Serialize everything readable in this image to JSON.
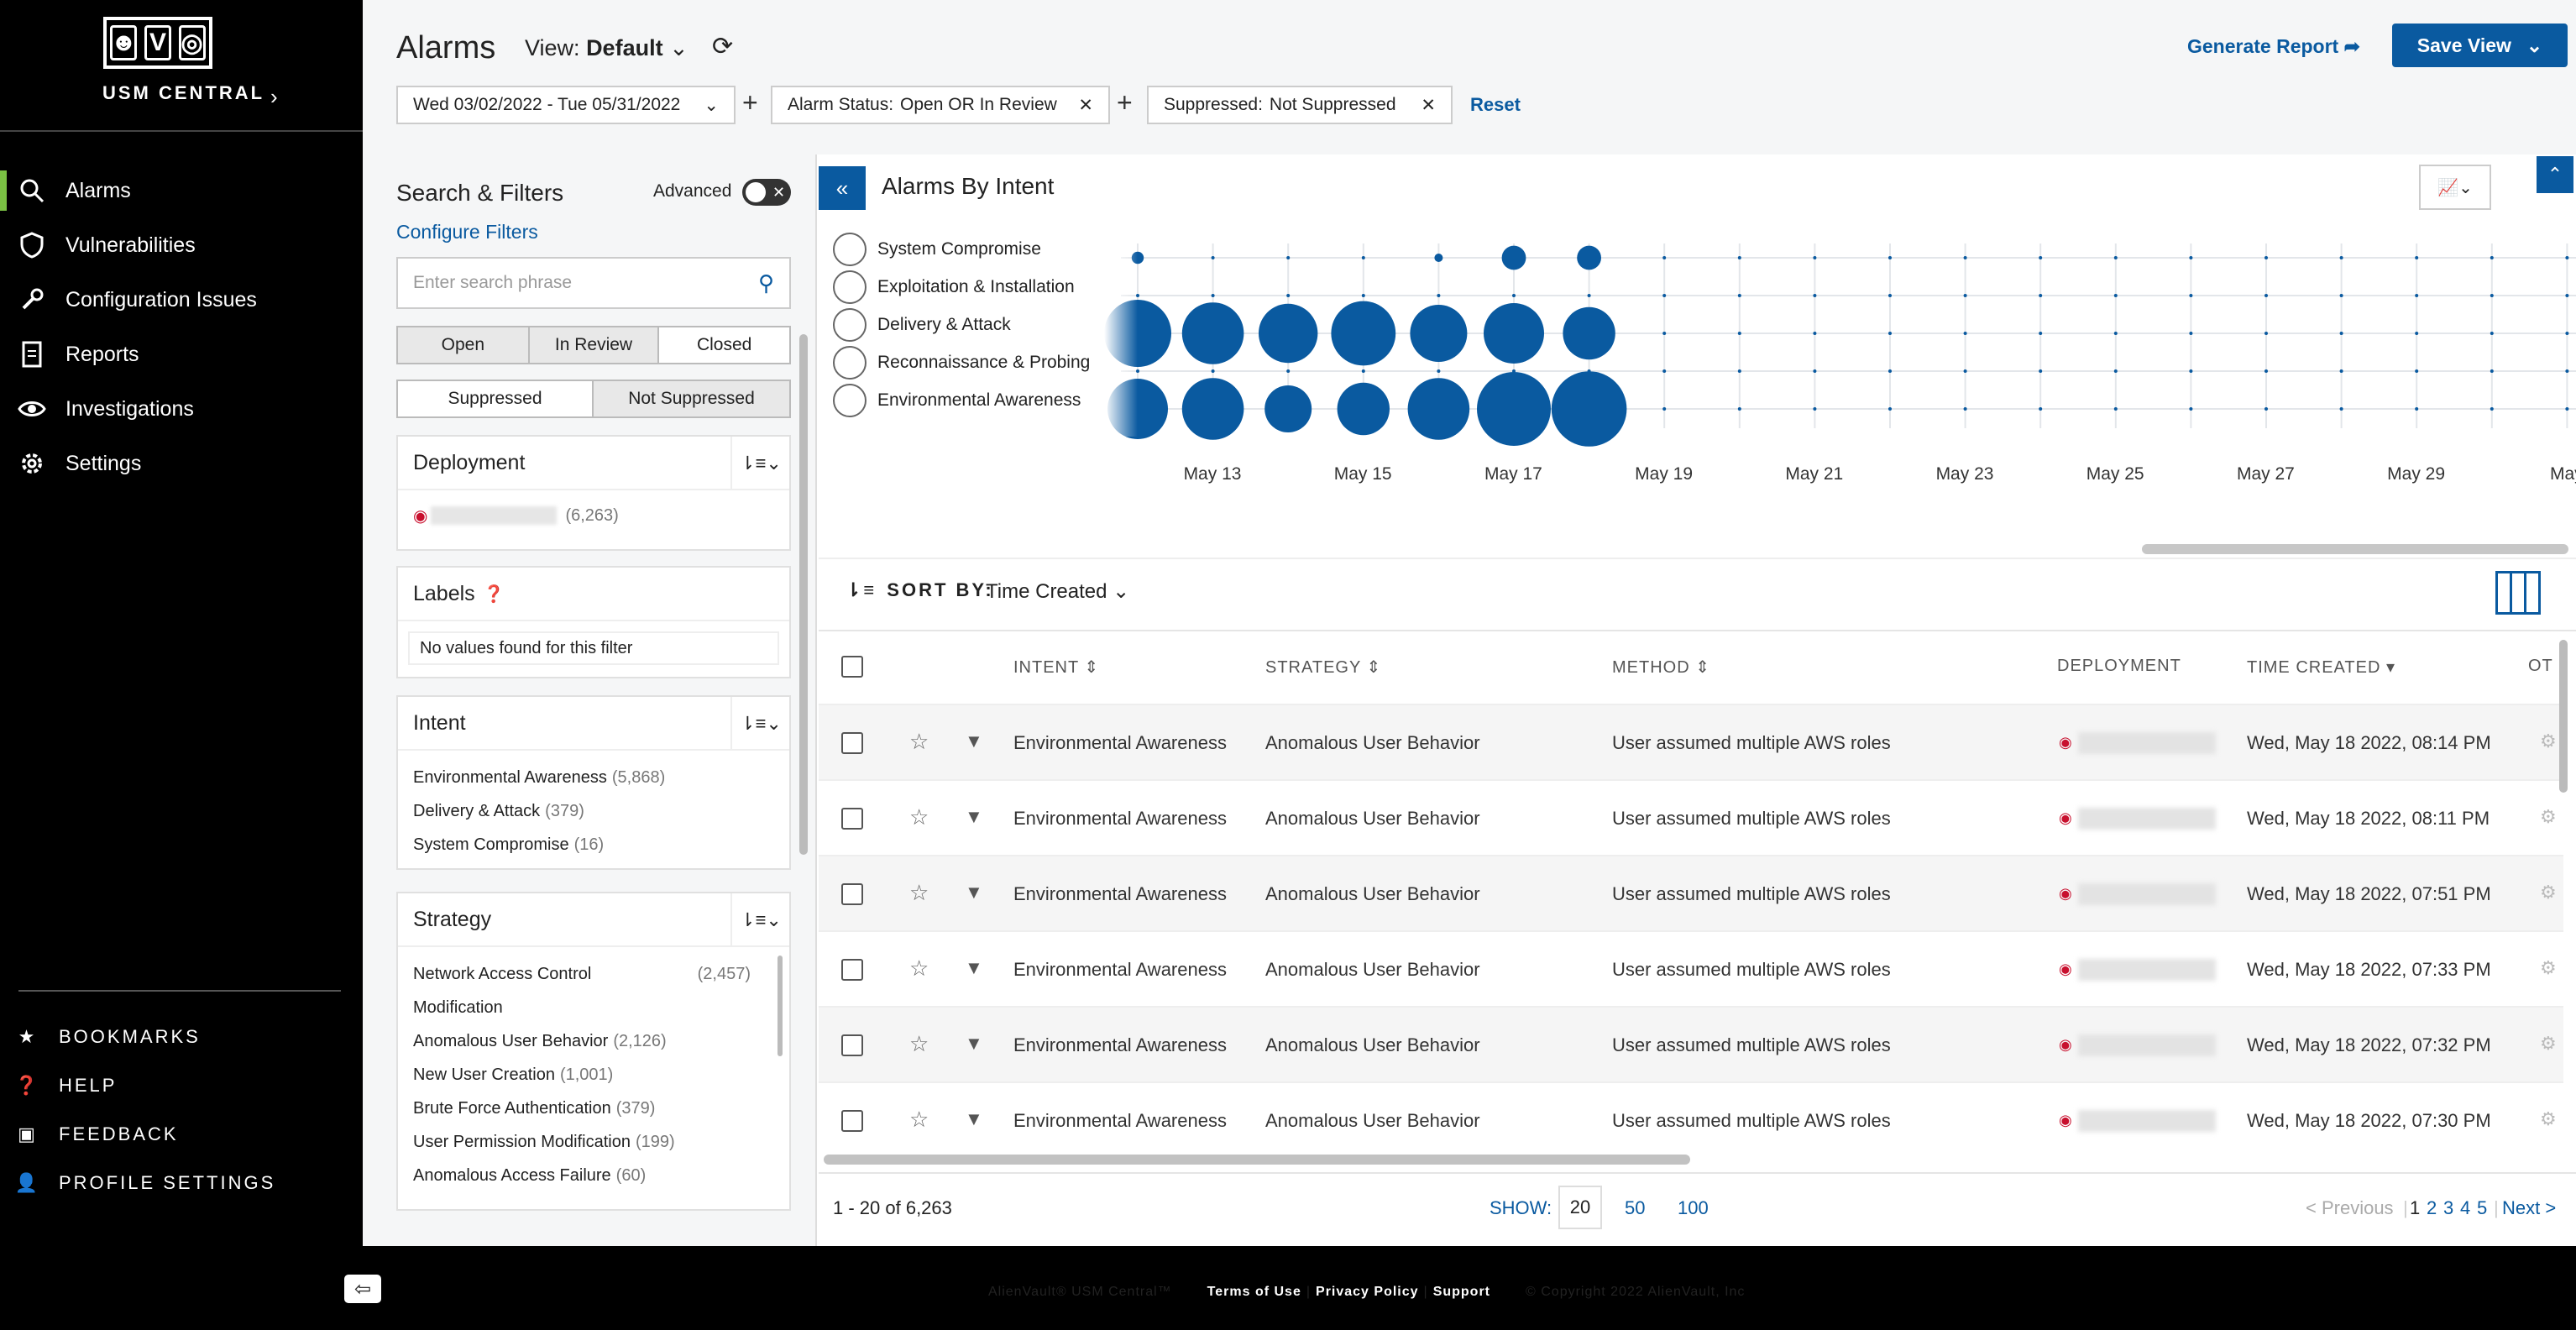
{
  "sidebar": {
    "brand": "USM CENTRAL",
    "logo_letters": [
      "V"
    ],
    "nav": [
      {
        "label": "Alarms",
        "icon": "alarm-search-icon"
      },
      {
        "label": "Vulnerabilities",
        "icon": "shield-icon"
      },
      {
        "label": "Configuration Issues",
        "icon": "wrench-icon"
      },
      {
        "label": "Reports",
        "icon": "document-icon"
      },
      {
        "label": "Investigations",
        "icon": "eye-icon"
      },
      {
        "label": "Settings",
        "icon": "gear-icon"
      }
    ],
    "footer": [
      {
        "label": "BOOKMARKS",
        "icon": "star-icon"
      },
      {
        "label": "HELP",
        "icon": "question-icon"
      },
      {
        "label": "FEEDBACK",
        "icon": "chat-icon"
      },
      {
        "label": "PROFILE SETTINGS",
        "icon": "user-icon"
      }
    ]
  },
  "header": {
    "title": "Alarms",
    "view_prefix": "View:",
    "view_value": "Default",
    "date_range": "Wed 03/02/2022 - Tue 05/31/2022",
    "status_label": "Alarm Status:",
    "status_value": "Open OR In Review",
    "supp_label": "Suppressed:",
    "supp_value": "Not Suppressed",
    "reset": "Reset",
    "generate_report": "Generate Report",
    "save_view": "Save View"
  },
  "filters": {
    "title": "Search & Filters",
    "advanced": "Advanced",
    "configure": "Configure Filters",
    "search_placeholder": "Enter search phrase",
    "status_tabs": [
      "Open",
      "In Review",
      "Closed"
    ],
    "supp_tabs": [
      "Suppressed",
      "Not Suppressed"
    ],
    "deployment": {
      "title": "Deployment",
      "count": "(6,263)"
    },
    "labels": {
      "title": "Labels",
      "empty": "No values found for this filter"
    },
    "intent": {
      "title": "Intent",
      "items": [
        {
          "name": "Environmental Awareness",
          "count": "(5,868)"
        },
        {
          "name": "Delivery & Attack",
          "count": "(379)"
        },
        {
          "name": "System Compromise",
          "count": "(16)"
        }
      ]
    },
    "strategy": {
      "title": "Strategy",
      "items": [
        {
          "name": "Network Access Control",
          "count": "(2,457)"
        },
        {
          "name": "Modification",
          "count": ""
        },
        {
          "name": "Anomalous User Behavior",
          "count": "(2,126)"
        },
        {
          "name": "New User Creation",
          "count": "(1,001)"
        },
        {
          "name": "Brute Force Authentication",
          "count": "(379)"
        },
        {
          "name": "User Permission Modification",
          "count": "(199)"
        },
        {
          "name": "Anomalous Access Failure",
          "count": "(60)"
        }
      ]
    }
  },
  "chart": {
    "title": "Alarms By Intent",
    "intents": [
      "System Compromise",
      "Exploitation & Installation",
      "Delivery & Attack",
      "Reconnaissance & Probing",
      "Environmental Awareness"
    ],
    "x_labels": [
      "May 13",
      "May 15",
      "May 17",
      "May 19",
      "May 21",
      "May 23",
      "May 25",
      "May 27",
      "May 29",
      "May"
    ]
  },
  "chart_data": {
    "type": "scatter",
    "title": "Alarms By Intent",
    "categories_y": [
      "System Compromise",
      "Exploitation & Installation",
      "Delivery & Attack",
      "Reconnaissance & Probing",
      "Environmental Awareness"
    ],
    "x": [
      "May 12",
      "May 13",
      "May 14",
      "May 15",
      "May 16",
      "May 17",
      "May 18"
    ],
    "series": [
      {
        "name": "System Compromise",
        "sizes": [
          0.18,
          0,
          0,
          0,
          0.12,
          0.36,
          0.36
        ]
      },
      {
        "name": "Exploitation & Installation",
        "sizes": [
          0,
          0,
          0,
          0,
          0,
          0,
          0
        ]
      },
      {
        "name": "Delivery & Attack",
        "sizes": [
          1,
          0.92,
          0.88,
          0.96,
          0.85,
          0.9,
          0.78
        ]
      },
      {
        "name": "Reconnaissance & Probing",
        "sizes": [
          0,
          0,
          0,
          0,
          0,
          0,
          0
        ]
      },
      {
        "name": "Environmental Awareness",
        "sizes": [
          0.9,
          0.92,
          0.7,
          0.78,
          0.92,
          1.1,
          1.12
        ]
      }
    ],
    "grid": true
  },
  "table": {
    "sort_label": "SORT BY:",
    "sort_value": "Time Created",
    "headers": [
      "INTENT",
      "STRATEGY",
      "METHOD",
      "DEPLOYMENT",
      "TIME CREATED",
      "OT"
    ],
    "rows": [
      {
        "intent": "Environmental Awareness",
        "strategy": "Anomalous User Behavior",
        "method": "User assumed multiple AWS roles",
        "time": "Wed, May 18 2022, 08:14 PM"
      },
      {
        "intent": "Environmental Awareness",
        "strategy": "Anomalous User Behavior",
        "method": "User assumed multiple AWS roles",
        "time": "Wed, May 18 2022, 08:11 PM"
      },
      {
        "intent": "Environmental Awareness",
        "strategy": "Anomalous User Behavior",
        "method": "User assumed multiple AWS roles",
        "time": "Wed, May 18 2022, 07:51 PM"
      },
      {
        "intent": "Environmental Awareness",
        "strategy": "Anomalous User Behavior",
        "method": "User assumed multiple AWS roles",
        "time": "Wed, May 18 2022, 07:33 PM"
      },
      {
        "intent": "Environmental Awareness",
        "strategy": "Anomalous User Behavior",
        "method": "User assumed multiple AWS roles",
        "time": "Wed, May 18 2022, 07:32 PM"
      },
      {
        "intent": "Environmental Awareness",
        "strategy": "Anomalous User Behavior",
        "method": "User assumed multiple AWS roles",
        "time": "Wed, May 18 2022, 07:30 PM"
      }
    ],
    "range": "1 - 20 of 6,263",
    "show_label": "SHOW:",
    "show_options": [
      "20",
      "50",
      "100"
    ],
    "prev": "< Previous",
    "pages": [
      "1",
      "2",
      "3",
      "4",
      "5"
    ],
    "next": "Next >"
  },
  "footer": {
    "brand": "AlienVault® USM Central™",
    "terms": "Terms of Use",
    "privacy": "Privacy Policy",
    "support": "Support",
    "copyright": "© Copyright 2022 AlienVault, Inc"
  },
  "colors": {
    "accent": "#0a5aa0",
    "active": "#7ac143",
    "bubble": "#0a5aa0"
  }
}
